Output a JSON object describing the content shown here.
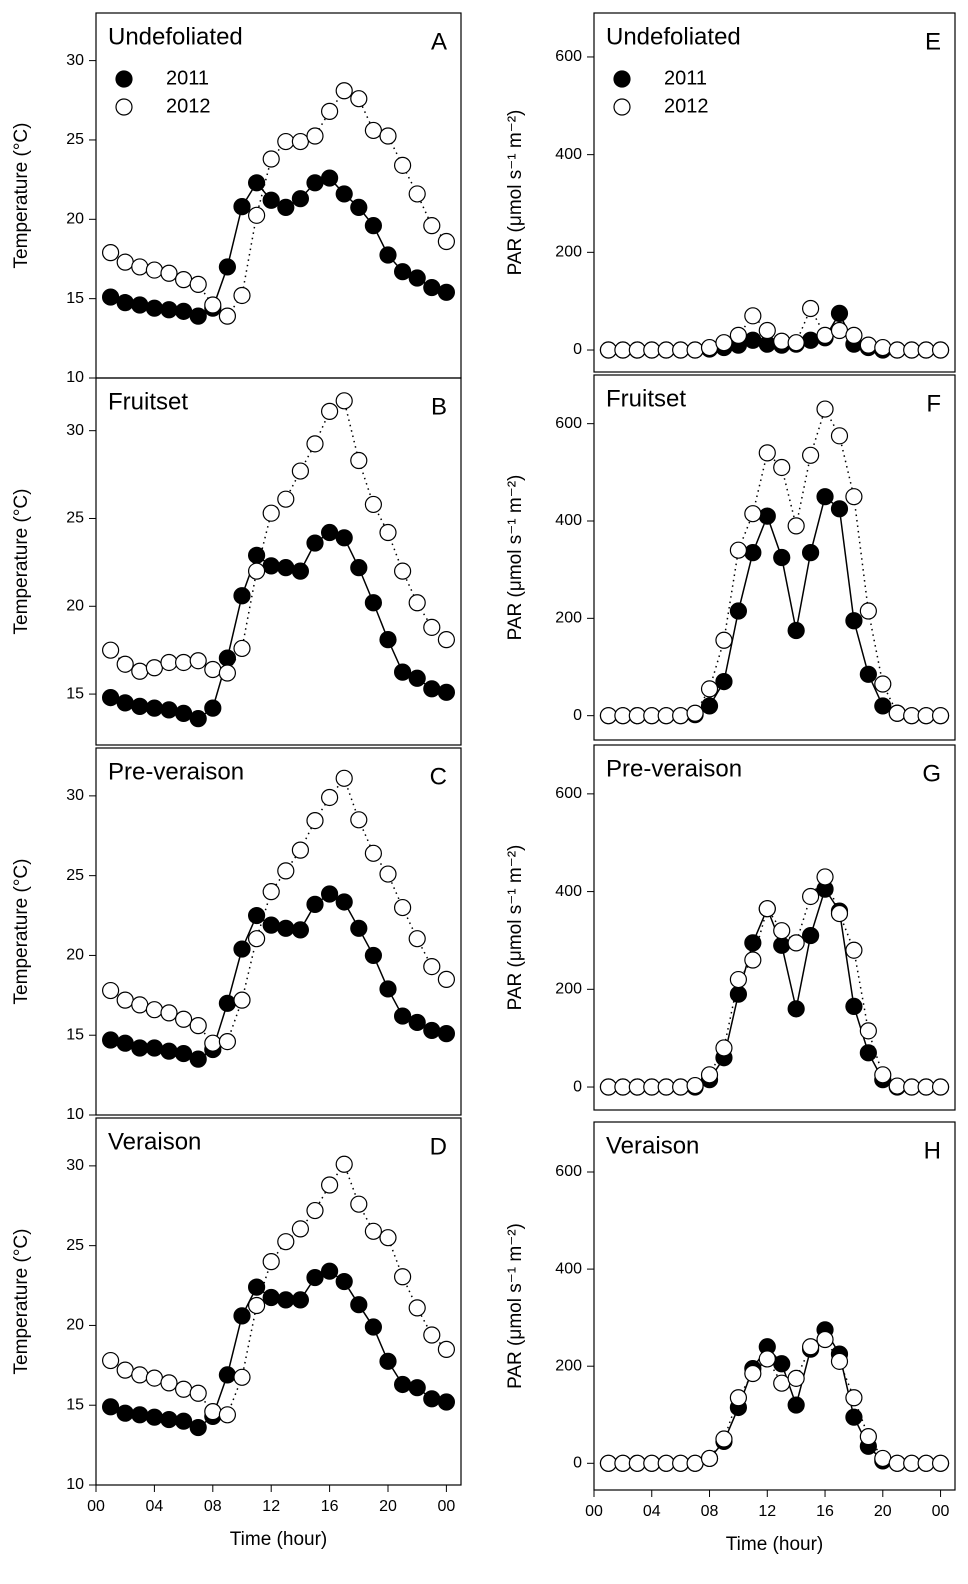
{
  "chart_data": [
    {
      "type": "line",
      "label": "Undefoliated",
      "panel_letter": "A",
      "ylabel": "Temperature (°C)",
      "xlim": [
        0,
        25
      ],
      "ylim": [
        10,
        33
      ],
      "yticks": [
        10,
        15,
        20,
        25,
        30
      ],
      "legend": true,
      "x": [
        1,
        2,
        3,
        4,
        5,
        6,
        7,
        8,
        9,
        10,
        11,
        12,
        13,
        14,
        15,
        16,
        17,
        18,
        19,
        20,
        21,
        22,
        23,
        24
      ],
      "series": [
        {
          "name": "2011",
          "color": "#000000",
          "marker_fill": "#000000",
          "line_style": "solid",
          "values": [
            15.1,
            14.75,
            14.6,
            14.4,
            14.3,
            14.2,
            13.9,
            14.4,
            17.0,
            20.8,
            22.3,
            21.2,
            20.75,
            21.3,
            22.3,
            22.6,
            21.6,
            20.75,
            19.6,
            17.75,
            16.7,
            16.3,
            15.7,
            15.4
          ]
        },
        {
          "name": "2012",
          "color": "#000000",
          "marker_fill": "#ffffff",
          "line_style": "dotted",
          "values": [
            17.9,
            17.3,
            17.0,
            16.8,
            16.6,
            16.2,
            15.9,
            14.6,
            13.9,
            15.2,
            20.25,
            23.8,
            24.9,
            24.9,
            25.25,
            26.8,
            28.1,
            27.6,
            25.6,
            25.25,
            23.4,
            21.6,
            19.6,
            18.6
          ]
        }
      ]
    },
    {
      "type": "line",
      "label": "Fruitset",
      "panel_letter": "B",
      "ylabel": "Temperature (°C)",
      "xlim": [
        0,
        25
      ],
      "ylim": [
        12.1,
        33
      ],
      "yticks": [
        15,
        20,
        25,
        30
      ],
      "x": [
        1,
        2,
        3,
        4,
        5,
        6,
        7,
        8,
        9,
        10,
        11,
        12,
        13,
        14,
        15,
        16,
        17,
        18,
        19,
        20,
        21,
        22,
        23,
        24
      ],
      "series": [
        {
          "color": "#000000",
          "marker_fill": "#000000",
          "line_style": "solid",
          "values": [
            14.8,
            14.5,
            14.3,
            14.2,
            14.1,
            13.9,
            13.6,
            14.2,
            17.05,
            20.6,
            22.9,
            22.3,
            22.2,
            22.0,
            23.6,
            24.2,
            23.9,
            22.2,
            20.2,
            18.1,
            16.25,
            15.9,
            15.3,
            15.1
          ]
        },
        {
          "color": "#000000",
          "marker_fill": "#ffffff",
          "line_style": "dotted",
          "values": [
            17.5,
            16.7,
            16.3,
            16.5,
            16.8,
            16.8,
            16.9,
            16.4,
            16.2,
            17.6,
            22.0,
            25.3,
            26.1,
            27.7,
            29.25,
            31.1,
            31.7,
            28.3,
            25.8,
            24.2,
            22.0,
            20.2,
            18.8,
            18.1
          ]
        }
      ]
    },
    {
      "type": "line",
      "label": "Pre-veraison",
      "panel_letter": "C",
      "ylabel": "Temperature (°C)",
      "xlim": [
        0,
        25
      ],
      "ylim": [
        10,
        33
      ],
      "yticks": [
        10,
        15,
        20,
        25,
        30
      ],
      "x": [
        1,
        2,
        3,
        4,
        5,
        6,
        7,
        8,
        9,
        10,
        11,
        12,
        13,
        14,
        15,
        16,
        17,
        18,
        19,
        20,
        21,
        22,
        23,
        24
      ],
      "series": [
        {
          "color": "#000000",
          "marker_fill": "#000000",
          "line_style": "solid",
          "values": [
            14.7,
            14.5,
            14.2,
            14.2,
            14.0,
            13.85,
            13.5,
            14.1,
            17.0,
            20.4,
            22.5,
            21.9,
            21.7,
            21.6,
            23.2,
            23.85,
            23.35,
            21.7,
            20.0,
            17.9,
            16.2,
            15.8,
            15.3,
            15.1
          ]
        },
        {
          "color": "#000000",
          "marker_fill": "#ffffff",
          "line_style": "dotted",
          "values": [
            17.8,
            17.2,
            16.9,
            16.6,
            16.4,
            16.0,
            15.6,
            14.5,
            14.6,
            17.2,
            21.05,
            24.0,
            25.3,
            26.6,
            28.45,
            29.9,
            31.1,
            28.5,
            26.4,
            25.1,
            23.0,
            21.05,
            19.3,
            18.5
          ]
        }
      ]
    },
    {
      "type": "line",
      "label": "Veraison",
      "panel_letter": "D",
      "ylabel": "Temperature (°C)",
      "xlabel": "Time (hour)",
      "xlim": [
        0,
        25
      ],
      "ylim": [
        10,
        33
      ],
      "yticks": [
        10,
        15,
        20,
        25,
        30
      ],
      "xticks": [
        {
          "value": 0,
          "label": "00"
        },
        {
          "value": 4,
          "label": "04"
        },
        {
          "value": 8,
          "label": "08"
        },
        12,
        16,
        20,
        {
          "value": 24,
          "label": "00"
        }
      ],
      "x": [
        1,
        2,
        3,
        4,
        5,
        6,
        7,
        8,
        9,
        10,
        11,
        12,
        13,
        14,
        15,
        16,
        17,
        18,
        19,
        20,
        21,
        22,
        23,
        24
      ],
      "series": [
        {
          "color": "#000000",
          "marker_fill": "#000000",
          "line_style": "solid",
          "values": [
            14.9,
            14.5,
            14.4,
            14.25,
            14.1,
            14.0,
            13.6,
            14.3,
            16.9,
            20.6,
            22.4,
            21.75,
            21.6,
            21.6,
            23.0,
            23.4,
            22.75,
            21.3,
            19.9,
            17.75,
            16.3,
            16.1,
            15.4,
            15.2
          ]
        },
        {
          "color": "#000000",
          "marker_fill": "#ffffff",
          "line_style": "dotted",
          "values": [
            17.8,
            17.2,
            16.9,
            16.7,
            16.4,
            16.0,
            15.75,
            14.6,
            14.4,
            16.75,
            21.25,
            24.0,
            25.25,
            26.05,
            27.2,
            28.8,
            30.1,
            27.6,
            25.9,
            25.5,
            23.05,
            21.1,
            19.4,
            18.5
          ]
        }
      ]
    },
    {
      "type": "line",
      "label": "Undefoliated",
      "panel_letter": "E",
      "ylabel": "PAR (μmol s⁻¹ m⁻²)",
      "xlim": [
        0,
        25
      ],
      "ylim": [
        -45,
        690
      ],
      "yticks": [
        0,
        200,
        400,
        600
      ],
      "legend": true,
      "x": [
        1,
        2,
        3,
        4,
        5,
        6,
        7,
        8,
        9,
        10,
        11,
        12,
        13,
        14,
        15,
        16,
        17,
        18,
        19,
        20,
        21,
        22,
        23,
        24
      ],
      "series": [
        {
          "name": "2011",
          "color": "#000000",
          "marker_fill": "#000000",
          "line_style": "solid",
          "values": [
            0,
            0,
            0,
            0,
            0,
            0,
            0,
            2,
            5,
            10,
            20,
            12,
            10,
            12,
            20,
            25,
            75,
            12,
            5,
            0,
            0,
            0,
            0,
            0
          ]
        },
        {
          "name": "2012",
          "color": "#000000",
          "marker_fill": "#ffffff",
          "line_style": "dotted",
          "values": [
            0,
            0,
            0,
            0,
            0,
            0,
            0,
            5,
            15,
            30,
            70,
            40,
            18,
            15,
            85,
            30,
            40,
            30,
            10,
            5,
            0,
            0,
            0,
            0
          ]
        }
      ]
    },
    {
      "type": "line",
      "label": "Fruitset",
      "panel_letter": "F",
      "ylabel": "PAR (μmol s⁻¹ m⁻²)",
      "xlim": [
        0,
        25
      ],
      "ylim": [
        -50,
        700
      ],
      "yticks": [
        0,
        200,
        400,
        600
      ],
      "x": [
        1,
        2,
        3,
        4,
        5,
        6,
        7,
        8,
        9,
        10,
        11,
        12,
        13,
        14,
        15,
        16,
        17,
        18,
        19,
        20,
        21,
        22,
        23,
        24
      ],
      "series": [
        {
          "color": "#000000",
          "marker_fill": "#000000",
          "line_style": "solid",
          "values": [
            0,
            0,
            0,
            0,
            0,
            0,
            2,
            20,
            70,
            215,
            335,
            410,
            325,
            175,
            335,
            450,
            425,
            195,
            85,
            20,
            5,
            0,
            0,
            0
          ]
        },
        {
          "color": "#000000",
          "marker_fill": "#ffffff",
          "line_style": "dotted",
          "values": [
            0,
            0,
            0,
            0,
            0,
            0,
            5,
            55,
            155,
            340,
            415,
            540,
            510,
            390,
            535,
            630,
            575,
            450,
            215,
            65,
            5,
            0,
            0,
            0
          ]
        }
      ]
    },
    {
      "type": "line",
      "label": "Pre-veraison",
      "panel_letter": "G",
      "ylabel": "PAR (μmol s⁻¹ m⁻²)",
      "xlim": [
        0,
        25
      ],
      "ylim": [
        -47,
        700
      ],
      "yticks": [
        0,
        200,
        400,
        600
      ],
      "x": [
        1,
        2,
        3,
        4,
        5,
        6,
        7,
        8,
        9,
        10,
        11,
        12,
        13,
        14,
        15,
        16,
        17,
        18,
        19,
        20,
        21,
        22,
        23,
        24
      ],
      "series": [
        {
          "color": "#000000",
          "marker_fill": "#000000",
          "line_style": "solid",
          "values": [
            0,
            0,
            0,
            0,
            0,
            0,
            0,
            15,
            60,
            190,
            295,
            365,
            290,
            160,
            310,
            405,
            360,
            165,
            70,
            15,
            0,
            0,
            0,
            0
          ]
        },
        {
          "color": "#000000",
          "marker_fill": "#ffffff",
          "line_style": "dotted",
          "values": [
            0,
            0,
            0,
            0,
            0,
            0,
            3,
            25,
            80,
            220,
            260,
            365,
            320,
            295,
            390,
            430,
            355,
            280,
            115,
            25,
            2,
            0,
            0,
            0
          ]
        }
      ]
    },
    {
      "type": "line",
      "label": "Veraison",
      "panel_letter": "H",
      "ylabel": "PAR (μmol s⁻¹ m⁻²)",
      "xlabel": "Time (hour)",
      "xlim": [
        0,
        25
      ],
      "ylim": [
        -55,
        703
      ],
      "yticks": [
        0,
        200,
        400,
        600
      ],
      "xticks": [
        {
          "value": 0,
          "label": "00"
        },
        {
          "value": 4,
          "label": "04"
        },
        {
          "value": 8,
          "label": "08"
        },
        12,
        16,
        20,
        {
          "value": 24,
          "label": "00"
        }
      ],
      "x": [
        1,
        2,
        3,
        4,
        5,
        6,
        7,
        8,
        9,
        10,
        11,
        12,
        13,
        14,
        15,
        16,
        17,
        18,
        19,
        20,
        21,
        22,
        23,
        24
      ],
      "series": [
        {
          "color": "#000000",
          "marker_fill": "#000000",
          "line_style": "solid",
          "values": [
            0,
            0,
            0,
            0,
            0,
            0,
            0,
            10,
            45,
            115,
            195,
            240,
            205,
            120,
            235,
            275,
            225,
            95,
            35,
            5,
            0,
            0,
            0,
            0
          ]
        },
        {
          "color": "#000000",
          "marker_fill": "#ffffff",
          "line_style": "dotted",
          "values": [
            0,
            0,
            0,
            0,
            0,
            0,
            0,
            10,
            50,
            135,
            185,
            215,
            165,
            175,
            240,
            255,
            210,
            135,
            55,
            10,
            0,
            0,
            0,
            0
          ]
        }
      ]
    }
  ]
}
